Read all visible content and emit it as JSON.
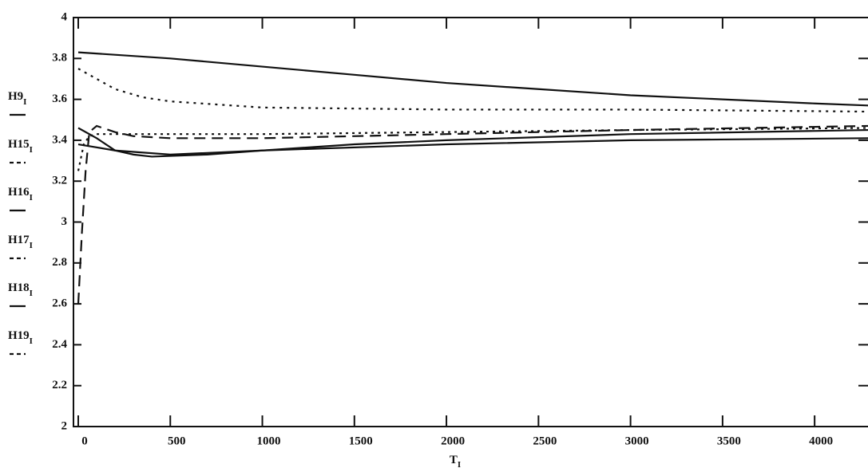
{
  "chart_data": {
    "type": "line",
    "subscript": "I",
    "x_label": "T",
    "xlim": [
      0,
      4290
    ],
    "ylim": [
      2,
      4
    ],
    "xticks": [
      0,
      500,
      1000,
      1500,
      2000,
      2500,
      3000,
      3500,
      4000
    ],
    "yticks": [
      2,
      2.2,
      2.4,
      2.6,
      2.8,
      3,
      3.2,
      3.4,
      3.6,
      3.8,
      4
    ],
    "series": [
      {
        "name": "H9",
        "color": "#111111",
        "dash": "none",
        "x": [
          0,
          500,
          1000,
          1500,
          2000,
          2500,
          3000,
          3500,
          4000,
          4290
        ],
        "values": [
          3.83,
          3.8,
          3.76,
          3.72,
          3.68,
          3.65,
          3.62,
          3.6,
          3.58,
          3.57
        ]
      },
      {
        "name": "H15",
        "color": "#111111",
        "dash": "3,6",
        "x": [
          0,
          100,
          200,
          350,
          500,
          1000,
          2000,
          3000,
          4290
        ],
        "values": [
          3.75,
          3.7,
          3.65,
          3.61,
          3.59,
          3.56,
          3.55,
          3.55,
          3.54
        ]
      },
      {
        "name": "H16",
        "color": "#111111",
        "dash": "none",
        "x": [
          0,
          100,
          200,
          300,
          400,
          700,
          1000,
          1500,
          2000,
          3000,
          4290
        ],
        "values": [
          3.46,
          3.41,
          3.35,
          3.33,
          3.32,
          3.33,
          3.35,
          3.38,
          3.4,
          3.43,
          3.45
        ]
      },
      {
        "name": "H17",
        "color": "#111111",
        "dash": "3,5",
        "x": [
          0,
          30,
          60,
          100,
          300,
          1000,
          2000,
          3000,
          4290
        ],
        "values": [
          3.25,
          3.38,
          3.42,
          3.43,
          3.43,
          3.43,
          3.44,
          3.45,
          3.46
        ]
      },
      {
        "name": "H18",
        "color": "#111111",
        "dash": "none",
        "x": [
          0,
          200,
          500,
          1000,
          2000,
          3000,
          4290
        ],
        "values": [
          3.38,
          3.35,
          3.33,
          3.35,
          3.38,
          3.4,
          3.41
        ]
      },
      {
        "name": "H19",
        "color": "#111111",
        "dash": "14,8",
        "x": [
          0,
          20,
          40,
          60,
          100,
          200,
          300,
          500,
          1000,
          2000,
          3000,
          4290
        ],
        "values": [
          2.6,
          2.95,
          3.25,
          3.44,
          3.47,
          3.44,
          3.42,
          3.41,
          3.41,
          3.43,
          3.45,
          3.47
        ]
      }
    ]
  }
}
